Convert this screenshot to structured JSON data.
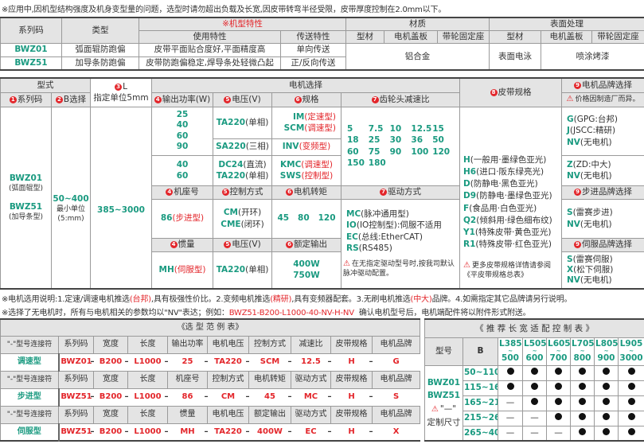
{
  "top_note": "※应用中,因机型结构强度及机身变型量的问题，选型时请勿超出负载及长宽,因皮带转弯半径受限，皮带厚度控制在2.0mm以下。",
  "t1": {
    "h_series": "系列码",
    "h_type": "类型",
    "h_features": "※机型特性",
    "h_use": "使用特性",
    "h_transfer": "传送特性",
    "h_material": "材质",
    "h_surface": "表面处理",
    "h_profile": "型材",
    "h_cover": "电机盖板",
    "h_seat": "带轮固定座",
    "rows": [
      {
        "series": "BWZ01",
        "type": "弧面辊防跑偏",
        "use": "皮带平面贴合度好,平面精度高",
        "transfer": "单向传送"
      },
      {
        "series": "BWZ51",
        "type": "加导条防跑偏",
        "use": "皮带防跑偏稳定,焊导条处轻微凸起",
        "transfer": "正/反向传送"
      }
    ],
    "material": "铝合金",
    "surface_profile": "表面电泳",
    "surface_other": "喷涂烤漆"
  },
  "t2": {
    "h_model": "型式",
    "h_L_num": "3",
    "h_L": "L",
    "h_L_unit": "指定单位5mm",
    "h_motor": "电机选择",
    "h_belt_num": "8",
    "h_belt": "皮带规格",
    "h_brand_num": "9",
    "h_brand": "电机品牌选择",
    "brand_note": "价格因制造厂而异。",
    "h_series_num": "1",
    "h_series": "系列码",
    "h_b_num": "2",
    "h_b": "B选择",
    "h_power_num": "4",
    "h_power": "输出功率(W)",
    "h_volt_num": "5",
    "h_volt": "电压(V)",
    "h_spec_num": "6",
    "h_spec": "规格",
    "h_ratio_num": "7",
    "h_ratio": "齿轮头减速比",
    "series": [
      {
        "code": "BWZ01",
        "desc": "(弧面辊型)"
      },
      {
        "code": "BWZ51",
        "desc": "(加导条型)"
      }
    ],
    "b_range": "50~400",
    "b_unit1": "最小单位",
    "b_unit2": "(5:mm)",
    "l_range": "385~3000",
    "power_a": [
      "25",
      "40",
      "60",
      "90"
    ],
    "volt_a1": "TA220",
    "volt_a1_s": "(单相)",
    "spec_a1": [
      {
        "c": "IM",
        "s": "(定速型)"
      },
      {
        "c": "SCM",
        "s": "(调速型)"
      }
    ],
    "volt_a2": "SA220",
    "volt_a2_s": "(三相)",
    "spec_a2": {
      "c": "INV",
      "s": "(变频型)"
    },
    "power_b": [
      "40",
      "60"
    ],
    "volt_b": [
      {
        "c": "DC24",
        "s": "(直流)"
      },
      {
        "c": "TA220",
        "s": "(单相)"
      }
    ],
    "spec_b": [
      {
        "c": "KMC",
        "s": "(调速型)"
      },
      {
        "c": "SWS",
        "s": "(控制型)"
      }
    ],
    "ratios": [
      "5",
      "7.5",
      "10",
      "12.5",
      "15",
      "18",
      "25",
      "30",
      "36",
      "50",
      "60",
      "75",
      "90",
      "100",
      "120",
      "150",
      "180"
    ],
    "brand_a": [
      {
        "c": "G",
        "s": "(GPG:台邦)"
      },
      {
        "c": "J",
        "s": "(JSCC:精研)"
      },
      {
        "c": "NV",
        "s": "(无电机)"
      }
    ],
    "brand_b": [
      {
        "c": "Z",
        "s": "(ZD:中大)"
      },
      {
        "c": "NV",
        "s": "(无电机)"
      }
    ],
    "h_frame": "机座号",
    "h_control": "控制方式",
    "h_torque": "电机转矩",
    "h_drive": "驱动方式",
    "h_step_brand": "步进品牌选择",
    "frame": "86",
    "frame_s": "(步进型)",
    "control": [
      {
        "c": "CM",
        "s": "(开环)"
      },
      {
        "c": "CME",
        "s": "(闭环)"
      }
    ],
    "torque": "45   80   120",
    "drive": [
      {
        "c": "MC",
        "s": "(脉冲通用型)"
      },
      {
        "c": "IO",
        "s": "(IO控制型):伺服不适用"
      },
      {
        "c": "EC",
        "s": "(总线:EtherCAT)"
      },
      {
        "c": "RS",
        "s": "(RS485)"
      }
    ],
    "drive_note": "在无指定驱动型号时,按我司默认脉冲驱动配置。",
    "step_brand": [
      {
        "c": "S",
        "s": "(雷赛步进)"
      },
      {
        "c": "NV",
        "s": "(无电机)"
      }
    ],
    "belts": [
      {
        "c": "H",
        "s": "(一般用·墨绿色亚光)"
      },
      {
        "c": "H6",
        "s": "(进口·阪东绿亮光)"
      },
      {
        "c": "D",
        "s": "(防静电·黑色亚光)"
      },
      {
        "c": "D9",
        "s": "(防静电·墨绿色亚光)"
      },
      {
        "c": "F",
        "s": "(食品用·白色亚光)"
      },
      {
        "c": "Q2",
        "s": "(倾斜用·绿色细布纹)"
      },
      {
        "c": "Y1",
        "s": "(特殊皮带·黄色亚光)"
      },
      {
        "c": "R1",
        "s": "(特殊皮带·红色亚光)"
      }
    ],
    "belt_note": "更多皮带规格详情请参阅《平皮带规格总表》",
    "h_inertia": "惯量",
    "h_servo_volt": "电压(V)",
    "h_rated": "额定输出",
    "h_servo_brand": "伺服品牌选择",
    "inertia": "MH",
    "inertia_s": "(伺服型)",
    "servo_volt": "TA220",
    "servo_volt_s": "(单相)",
    "rated": [
      "400W",
      "750W"
    ],
    "servo_brand": [
      {
        "c": "S",
        "s": "(雷赛伺服)"
      },
      {
        "c": "X",
        "s": "(松下伺服)"
      },
      {
        "c": "NV",
        "s": "(无电机)"
      }
    ]
  },
  "note2": {
    "a": "※电机选用说明:1.定速/调速电机推选",
    "b": "(台邦)",
    "c": ",具有极强性价比。2.变频电机推选",
    "d": "(精研)",
    "e": ",具有变频器配套。3.无刷电机推选",
    "f": "(中大)",
    "g": "品牌。4.如需指定其它品牌请另行说明。"
  },
  "note3": {
    "a": "※选择了无电机时，所有与电机相关的参数均以\"NV\"表达；例如：",
    "b": "BWZ51-B200-L1000-40-NV-H-NV",
    "c": "确认电机型号后，电机端配件将以附件形式附送。"
  },
  "example": {
    "title": "《选 型 范 例 表》",
    "connector": "\"-\"型号连接符",
    "groups": [
      {
        "headers": [
          "系列码",
          "宽度",
          "长度",
          "输出功率",
          "电机电压",
          "控制方式",
          "减速比",
          "皮带规格",
          "电机品牌"
        ],
        "type": "调速型",
        "codes": [
          "BWZ01",
          "B200",
          "L1000",
          "25",
          "TA220",
          "SCM",
          "12.5",
          "H",
          "G"
        ]
      },
      {
        "headers": [
          "系列码",
          "宽度",
          "长度",
          "机座号",
          "控制方式",
          "电机转矩",
          "驱动方式",
          "皮带规格",
          "电机品牌"
        ],
        "type": "步进型",
        "codes": [
          "BWZ51",
          "B200",
          "L1000",
          "86",
          "CM",
          "45",
          "MC",
          "H",
          "S"
        ]
      },
      {
        "headers": [
          "系列码",
          "宽度",
          "长度",
          "惯量",
          "电机电压",
          "额定输出",
          "驱动方式",
          "皮带规格",
          "电机品牌"
        ],
        "type": "伺服型",
        "codes": [
          "BWZ51",
          "B200",
          "L1000",
          "MH",
          "TA220",
          "400W",
          "EC",
          "H",
          "X"
        ]
      }
    ]
  },
  "recommend": {
    "title": "《 推 荐 长 宽 适 配 控 制 表 》",
    "h_model": "型号",
    "h_b": "B",
    "lengths": [
      [
        "L385",
        "500"
      ],
      [
        "L505",
        "600"
      ],
      [
        "L605",
        "700"
      ],
      [
        "L705",
        "800"
      ],
      [
        "L805",
        "900"
      ],
      [
        "L905",
        "3000"
      ]
    ],
    "models": [
      "BWZ01",
      "BWZ51"
    ],
    "custom_mark": "\"—\"",
    "custom": "定制尺寸",
    "rows": [
      {
        "b": "50~110",
        "v": [
          1,
          1,
          1,
          1,
          1,
          1
        ]
      },
      {
        "b": "115~160",
        "v": [
          1,
          1,
          1,
          1,
          1,
          1
        ]
      },
      {
        "b": "165~210",
        "v": [
          0,
          1,
          1,
          1,
          1,
          1
        ]
      },
      {
        "b": "215~260",
        "v": [
          0,
          0,
          1,
          1,
          1,
          1
        ]
      },
      {
        "b": "265~400",
        "v": [
          0,
          0,
          0,
          1,
          1,
          1
        ]
      }
    ],
    "dash": "—"
  },
  "colors": {
    "green": "#1a9a80",
    "red": "#e3262b",
    "header": "#e4e4e4"
  }
}
